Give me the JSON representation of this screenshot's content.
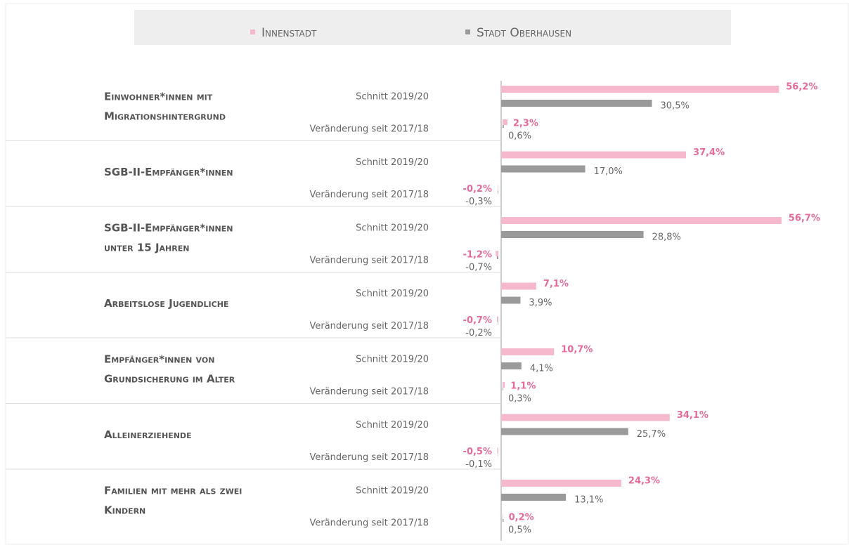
{
  "chart_data": {
    "type": "bar",
    "measures": [
      "Schnitt 2019/20",
      "Veränderung seit 2017/18"
    ],
    "categories": [
      [
        "Einwohner*innen mit",
        "Migrationshintergrund"
      ],
      [
        "SGB-II-Empfänger*innen"
      ],
      [
        "SGB-II-Empfänger*innen",
        "unter 15 Jahren"
      ],
      [
        "Arbeitslose Jugendliche"
      ],
      [
        "Empfänger*innen von",
        "Grundsicherung im Alter"
      ],
      [
        "Alleinerziehende"
      ],
      [
        "Familien mit mehr als zwei",
        "Kindern"
      ]
    ],
    "xlim": [
      0,
      60
    ],
    "series": [
      {
        "name": "Innenstadt",
        "color": "#f5b8cc",
        "label_color": "#e46b9b",
        "values": [
          56.2,
          37.4,
          56.7,
          7.1,
          10.7,
          34.1,
          24.3
        ],
        "value_labels": [
          "56,2%",
          "37,4%",
          "56,7%",
          "7,1%",
          "10,7%",
          "34,1%",
          "24,3%"
        ],
        "changes": [
          2.3,
          -0.2,
          -1.2,
          -0.7,
          1.1,
          -0.5,
          0.2
        ],
        "change_labels": [
          "2,3%",
          "-0,2%",
          "-1,2%",
          "-0,7%",
          "1,1%",
          "-0,5%",
          "0,2%"
        ]
      },
      {
        "name": "Stadt Oberhausen",
        "color": "#9a9a9a",
        "label_color": "#666666",
        "values": [
          30.5,
          17.0,
          28.8,
          3.9,
          4.1,
          25.7,
          13.1
        ],
        "value_labels": [
          "30,5%",
          "17,0%",
          "28,8%",
          "3,9%",
          "4,1%",
          "25,7%",
          "13,1%"
        ],
        "changes": [
          0.6,
          -0.3,
          -0.7,
          -0.2,
          0.3,
          -0.1,
          0.5
        ],
        "change_labels": [
          "0,6%",
          "-0,3%",
          "-0,7%",
          "-0,2%",
          "0,3%",
          "-0,1%",
          "0,5%"
        ]
      }
    ]
  }
}
